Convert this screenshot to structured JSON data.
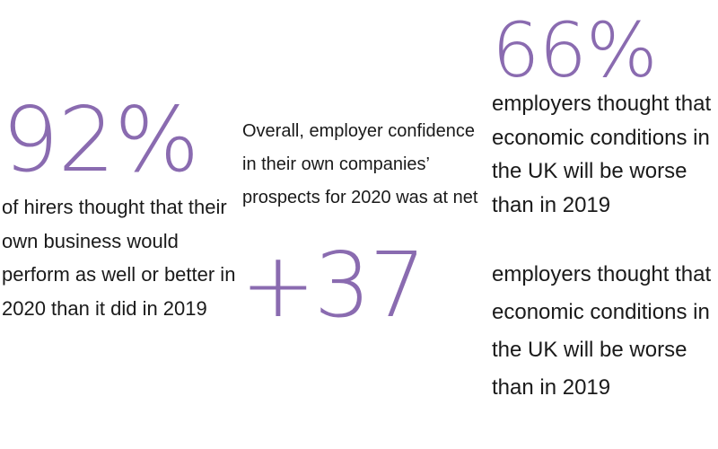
{
  "stat_hirers": {
    "figure": "92%",
    "description": "of hirers thought that their own business would perform as well or better in 2020 than it did in 2019"
  },
  "stat_confidence": {
    "intro": "Overall, employer confidence in their own companies’ prospects for 2020 was at net",
    "figure": "+37"
  },
  "stat_economy": {
    "figure": "66%",
    "description_1": "employers thought that economic conditions in the UK will be worse than in 2019",
    "description_2": "employers thought that economic conditions in the UK will be worse than in 2019"
  },
  "colors": {
    "accent": "#8a6bb0",
    "text": "#1a1a1a",
    "background": "#ffffff"
  }
}
